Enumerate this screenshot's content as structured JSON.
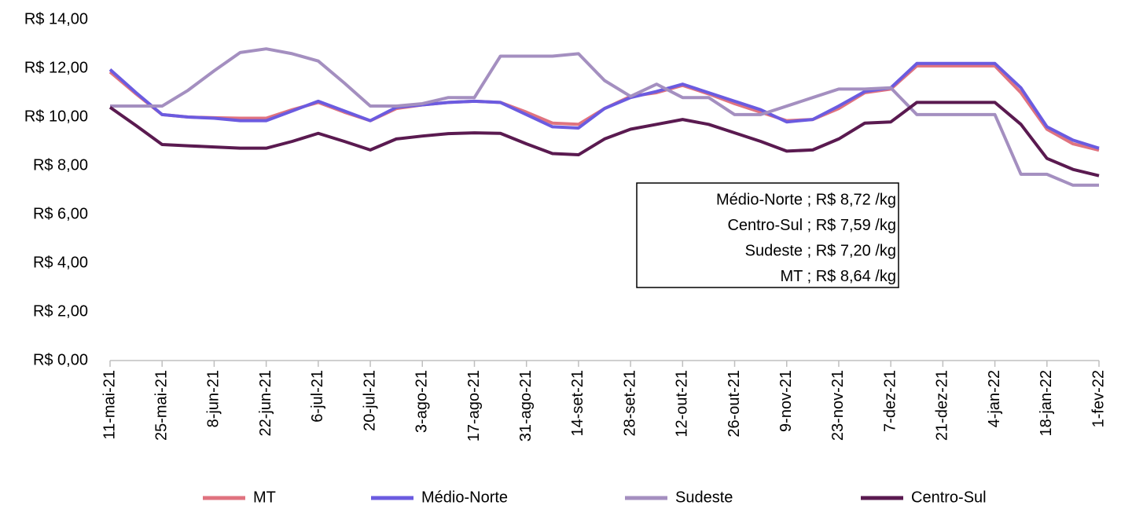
{
  "chart_data": {
    "type": "line",
    "categories": [
      "11-mai-21",
      null,
      "25-mai-21",
      null,
      "8-jun-21",
      null,
      "22-jun-21",
      null,
      "6-jul-21",
      null,
      "20-jul-21",
      null,
      "3-ago-21",
      null,
      "17-ago-21",
      null,
      "31-ago-21",
      null,
      "14-set-21",
      null,
      "28-set-21",
      null,
      "12-out-21",
      null,
      "26-out-21",
      null,
      "9-nov-21",
      null,
      "23-nov-21",
      null,
      "7-dez-21",
      null,
      "21-dez-21",
      null,
      "4-jan-22",
      null,
      "18-jan-22",
      null,
      "1-fev-22"
    ],
    "series": [
      {
        "name": "MT",
        "color": "#e0737f",
        "values": [
          11.85,
          10.95,
          10.1,
          10.0,
          9.97,
          9.95,
          9.95,
          10.3,
          10.6,
          10.2,
          9.85,
          10.35,
          10.5,
          10.6,
          10.65,
          10.6,
          10.2,
          9.75,
          9.7,
          10.35,
          10.85,
          11.0,
          11.3,
          10.95,
          10.55,
          10.2,
          9.85,
          9.9,
          10.35,
          11.0,
          11.15,
          12.1,
          12.1,
          12.1,
          12.1,
          11.0,
          9.5,
          8.9,
          8.64
        ]
      },
      {
        "name": "Médio-Norte",
        "color": "#6b5be0",
        "values": [
          11.95,
          11.0,
          10.1,
          10.0,
          9.95,
          9.85,
          9.85,
          10.25,
          10.65,
          10.25,
          9.85,
          10.4,
          10.5,
          10.6,
          10.65,
          10.6,
          10.1,
          9.6,
          9.55,
          10.35,
          10.8,
          11.05,
          11.35,
          11.0,
          10.65,
          10.3,
          9.8,
          9.9,
          10.45,
          11.05,
          11.2,
          12.2,
          12.2,
          12.2,
          12.2,
          11.2,
          9.6,
          9.05,
          8.72
        ]
      },
      {
        "name": "Sudeste",
        "color": "#a48fc0",
        "values": [
          10.45,
          10.45,
          10.45,
          11.1,
          11.9,
          12.65,
          12.8,
          12.6,
          12.3,
          11.4,
          10.45,
          10.45,
          10.55,
          10.8,
          10.8,
          12.5,
          12.5,
          12.5,
          12.6,
          11.5,
          10.85,
          11.35,
          10.8,
          10.8,
          10.1,
          10.1,
          10.45,
          10.8,
          11.15,
          11.15,
          11.2,
          10.1,
          10.1,
          10.1,
          10.1,
          7.65,
          7.65,
          7.2,
          7.2
        ]
      },
      {
        "name": "Centro-Sul",
        "color": "#5a1a50",
        "values": [
          10.4,
          9.65,
          8.87,
          8.82,
          8.77,
          8.72,
          8.72,
          9.0,
          9.33,
          9.0,
          8.65,
          9.1,
          9.22,
          9.32,
          9.35,
          9.33,
          8.9,
          8.5,
          8.45,
          9.1,
          9.5,
          9.7,
          9.9,
          9.7,
          9.35,
          9.0,
          8.6,
          8.65,
          9.1,
          9.75,
          9.8,
          10.6,
          10.6,
          10.6,
          10.6,
          9.7,
          8.3,
          7.85,
          7.59
        ]
      }
    ],
    "ylim": [
      0,
      14
    ],
    "yticks": [
      {
        "value": 0,
        "label": "R$ 0,00"
      },
      {
        "value": 2,
        "label": "R$ 2,00"
      },
      {
        "value": 4,
        "label": "R$ 4,00"
      },
      {
        "value": 6,
        "label": "R$ 6,00"
      },
      {
        "value": 8,
        "label": "R$ 8,00"
      },
      {
        "value": 10,
        "label": "R$ 10,00"
      },
      {
        "value": 12,
        "label": "R$ 12,00"
      },
      {
        "value": 14,
        "label": "R$ 14,00"
      }
    ],
    "annotations": [
      "Médio-Norte ;  R$ 8,72 /kg",
      "Centro-Sul ;  R$ 7,59 /kg",
      "Sudeste ;  R$ 7,20 /kg",
      "MT ;  R$ 8,64 /kg"
    ],
    "legend": "bottom"
  }
}
